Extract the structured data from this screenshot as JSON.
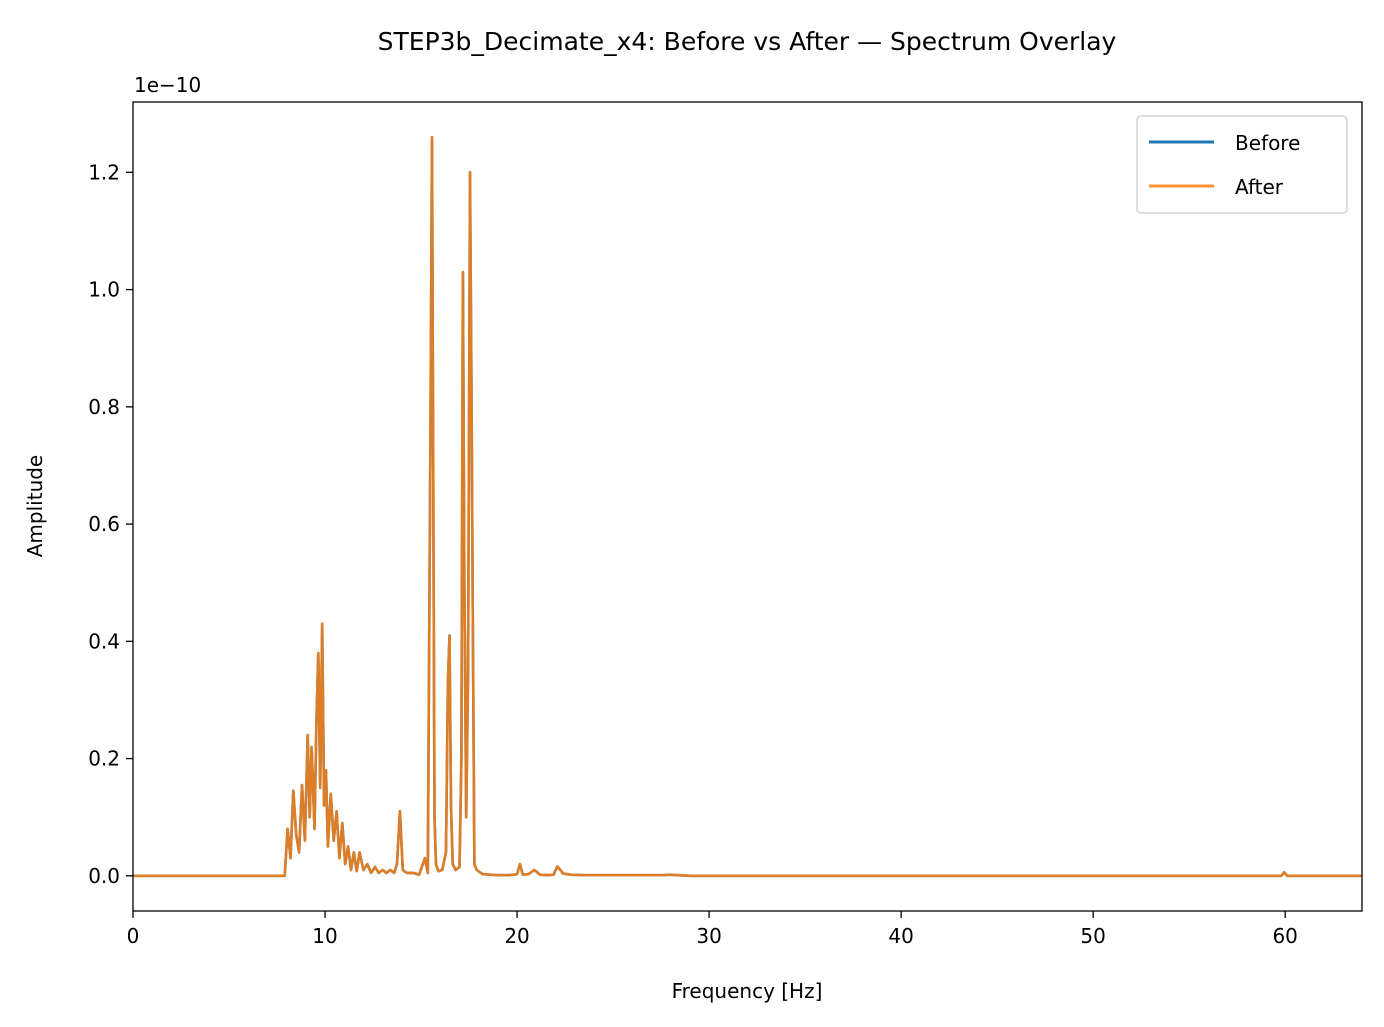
{
  "chart_data": {
    "type": "line",
    "title": "STEP3b_Decimate_x4: Before vs After — Spectrum Overlay",
    "xlabel": "Frequency [Hz]",
    "ylabel": "Amplitude",
    "y_offset_label": "1e−10",
    "y_scale": 1e-10,
    "xlim": [
      0,
      64
    ],
    "ylim": [
      -0.06,
      1.32
    ],
    "x_ticks": [
      0,
      10,
      20,
      30,
      40,
      50,
      60
    ],
    "x_tick_labels": [
      "0",
      "10",
      "20",
      "30",
      "40",
      "50",
      "60"
    ],
    "y_ticks": [
      0.0,
      0.2,
      0.4,
      0.6,
      0.8,
      1.0,
      1.2
    ],
    "y_tick_labels": [
      "0.0",
      "0.2",
      "0.4",
      "0.6",
      "0.8",
      "1.0",
      "1.2"
    ],
    "grid": false,
    "legend_position": "top-right",
    "series": [
      {
        "name": "Before",
        "color": "#1f77b4",
        "x": [
          0,
          7.9,
          8.05,
          8.2,
          8.35,
          8.5,
          8.65,
          8.8,
          8.95,
          9.1,
          9.2,
          9.3,
          9.45,
          9.55,
          9.65,
          9.75,
          9.85,
          9.95,
          10.05,
          10.15,
          10.3,
          10.45,
          10.6,
          10.75,
          10.9,
          11.05,
          11.2,
          11.35,
          11.5,
          11.65,
          11.8,
          12.0,
          12.2,
          12.4,
          12.6,
          12.8,
          13.0,
          13.2,
          13.4,
          13.6,
          13.75,
          13.9,
          14.05,
          14.25,
          14.6,
          14.9,
          15.2,
          15.35,
          15.5,
          15.57,
          15.64,
          15.7,
          15.78,
          15.9,
          16.1,
          16.3,
          16.4,
          16.48,
          16.56,
          16.65,
          16.8,
          17.0,
          17.1,
          17.18,
          17.26,
          17.35,
          17.45,
          17.55,
          17.63,
          17.7,
          17.78,
          17.9,
          18.2,
          18.6,
          19.0,
          19.6,
          20.0,
          20.15,
          20.3,
          20.6,
          20.9,
          21.2,
          21.6,
          21.9,
          22.1,
          22.4,
          22.8,
          23.5,
          24.5,
          26.0,
          27.7,
          27.9,
          29.0,
          32.0,
          40.0,
          50.0,
          59.8,
          59.95,
          60.1,
          64.0
        ],
        "values": [
          0,
          0,
          0.08,
          0.03,
          0.145,
          0.07,
          0.04,
          0.155,
          0.06,
          0.24,
          0.1,
          0.22,
          0.08,
          0.26,
          0.38,
          0.15,
          0.43,
          0.12,
          0.18,
          0.05,
          0.14,
          0.06,
          0.11,
          0.03,
          0.09,
          0.02,
          0.05,
          0.01,
          0.04,
          0.008,
          0.04,
          0.01,
          0.02,
          0.005,
          0.015,
          0.005,
          0.01,
          0.005,
          0.01,
          0.005,
          0.02,
          0.11,
          0.01,
          0.005,
          0.005,
          0.002,
          0.03,
          0.005,
          0.8,
          1.26,
          0.66,
          0.1,
          0.02,
          0.008,
          0.01,
          0.04,
          0.33,
          0.41,
          0.12,
          0.02,
          0.01,
          0.015,
          0.2,
          1.03,
          0.5,
          0.1,
          0.35,
          1.2,
          0.8,
          0.41,
          0.02,
          0.01,
          0.003,
          0.002,
          0.001,
          0.001,
          0.003,
          0.02,
          0.002,
          0.003,
          0.01,
          0.002,
          0.001,
          0.002,
          0.016,
          0.004,
          0.002,
          0.001,
          0.001,
          0.001,
          0.001,
          0.002,
          0,
          0,
          0,
          0,
          0,
          0.006,
          0,
          0
        ]
      },
      {
        "name": "After",
        "color": "#ff7f0e",
        "x": [
          0,
          7.9,
          8.05,
          8.2,
          8.35,
          8.5,
          8.65,
          8.8,
          8.95,
          9.1,
          9.2,
          9.3,
          9.45,
          9.55,
          9.65,
          9.75,
          9.85,
          9.95,
          10.05,
          10.15,
          10.3,
          10.45,
          10.6,
          10.75,
          10.9,
          11.05,
          11.2,
          11.35,
          11.5,
          11.65,
          11.8,
          12.0,
          12.2,
          12.4,
          12.6,
          12.8,
          13.0,
          13.2,
          13.4,
          13.6,
          13.75,
          13.9,
          14.05,
          14.25,
          14.6,
          14.9,
          15.2,
          15.35,
          15.5,
          15.57,
          15.64,
          15.7,
          15.78,
          15.9,
          16.1,
          16.3,
          16.4,
          16.48,
          16.56,
          16.65,
          16.8,
          17.0,
          17.1,
          17.18,
          17.26,
          17.35,
          17.45,
          17.55,
          17.63,
          17.7,
          17.78,
          17.9,
          18.2,
          18.6,
          19.0,
          19.6,
          20.0,
          20.15,
          20.3,
          20.6,
          20.9,
          21.2,
          21.6,
          21.9,
          22.1,
          22.4,
          22.8,
          23.5,
          24.5,
          26.0,
          27.7,
          27.9,
          29.0,
          32.0,
          40.0,
          50.0,
          59.8,
          59.95,
          60.1,
          64.0
        ],
        "values": [
          0,
          0,
          0.08,
          0.03,
          0.145,
          0.07,
          0.04,
          0.155,
          0.06,
          0.24,
          0.1,
          0.22,
          0.08,
          0.26,
          0.38,
          0.15,
          0.43,
          0.12,
          0.18,
          0.05,
          0.14,
          0.06,
          0.11,
          0.03,
          0.09,
          0.02,
          0.05,
          0.01,
          0.04,
          0.008,
          0.04,
          0.01,
          0.02,
          0.005,
          0.015,
          0.005,
          0.01,
          0.005,
          0.01,
          0.005,
          0.02,
          0.11,
          0.01,
          0.005,
          0.005,
          0.002,
          0.03,
          0.005,
          0.8,
          1.26,
          0.66,
          0.1,
          0.02,
          0.008,
          0.01,
          0.04,
          0.33,
          0.41,
          0.12,
          0.02,
          0.01,
          0.015,
          0.2,
          1.03,
          0.5,
          0.1,
          0.35,
          1.2,
          0.8,
          0.41,
          0.02,
          0.01,
          0.003,
          0.002,
          0.001,
          0.001,
          0.003,
          0.02,
          0.002,
          0.003,
          0.01,
          0.002,
          0.001,
          0.002,
          0.016,
          0.004,
          0.002,
          0.001,
          0.001,
          0.001,
          0.001,
          0.002,
          0,
          0,
          0,
          0,
          0,
          0.006,
          0,
          0
        ]
      }
    ]
  }
}
